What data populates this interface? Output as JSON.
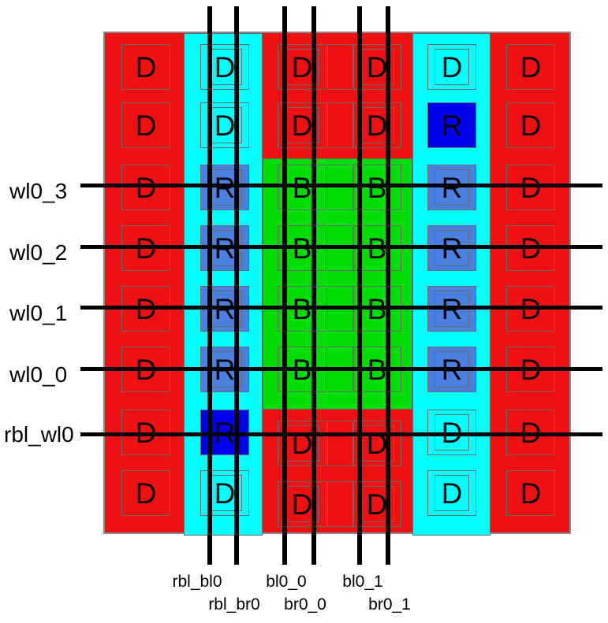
{
  "colors": {
    "background": "#ffffff",
    "red": "#ee1111",
    "cyan": "#00ffff",
    "green": "#00dd00",
    "blue": "#0000ee",
    "mblue": "#4a80e0",
    "outline": "#6b6b6b",
    "line": "#000000",
    "text": "#000000"
  },
  "wordlines": [
    {
      "label": "wl0_3"
    },
    {
      "label": "wl0_2"
    },
    {
      "label": "wl0_1"
    },
    {
      "label": "wl0_0"
    },
    {
      "label": "rbl_wl0"
    }
  ],
  "bitlines": [
    {
      "label": "rbl_bl0"
    },
    {
      "label": "rbl_br0"
    },
    {
      "label": "bl0_0"
    },
    {
      "label": "br0_0"
    },
    {
      "label": "bl0_1"
    },
    {
      "label": "br0_1"
    }
  ],
  "grid": {
    "rows": 8,
    "cols": 6,
    "letters": [
      [
        "D",
        "D",
        "D",
        "D",
        "D",
        "D"
      ],
      [
        "D",
        "D",
        "D",
        "D",
        "R",
        "D"
      ],
      [
        "D",
        "R",
        "B",
        "B",
        "R",
        "D"
      ],
      [
        "D",
        "R",
        "B",
        "B",
        "R",
        "D"
      ],
      [
        "D",
        "R",
        "B",
        "B",
        "R",
        "D"
      ],
      [
        "D",
        "R",
        "B",
        "B",
        "R",
        "D"
      ],
      [
        "D",
        "R",
        "D",
        "D",
        "D",
        "D"
      ],
      [
        "D",
        "D",
        "D",
        "D",
        "D",
        "D"
      ]
    ],
    "fills": [
      [
        "red",
        "cyan",
        "red",
        "red",
        "cyan",
        "red"
      ],
      [
        "red",
        "cyan",
        "red",
        "red",
        "blue",
        "red"
      ],
      [
        "red",
        "mblue",
        "green",
        "green",
        "mblue",
        "red"
      ],
      [
        "red",
        "mblue",
        "green",
        "green",
        "mblue",
        "red"
      ],
      [
        "red",
        "mblue",
        "green",
        "green",
        "mblue",
        "red"
      ],
      [
        "red",
        "mblue",
        "green",
        "green",
        "mblue",
        "red"
      ],
      [
        "red",
        "blue",
        "red",
        "red",
        "cyan",
        "red"
      ],
      [
        "red",
        "cyan",
        "red",
        "red",
        "cyan",
        "red"
      ]
    ]
  }
}
